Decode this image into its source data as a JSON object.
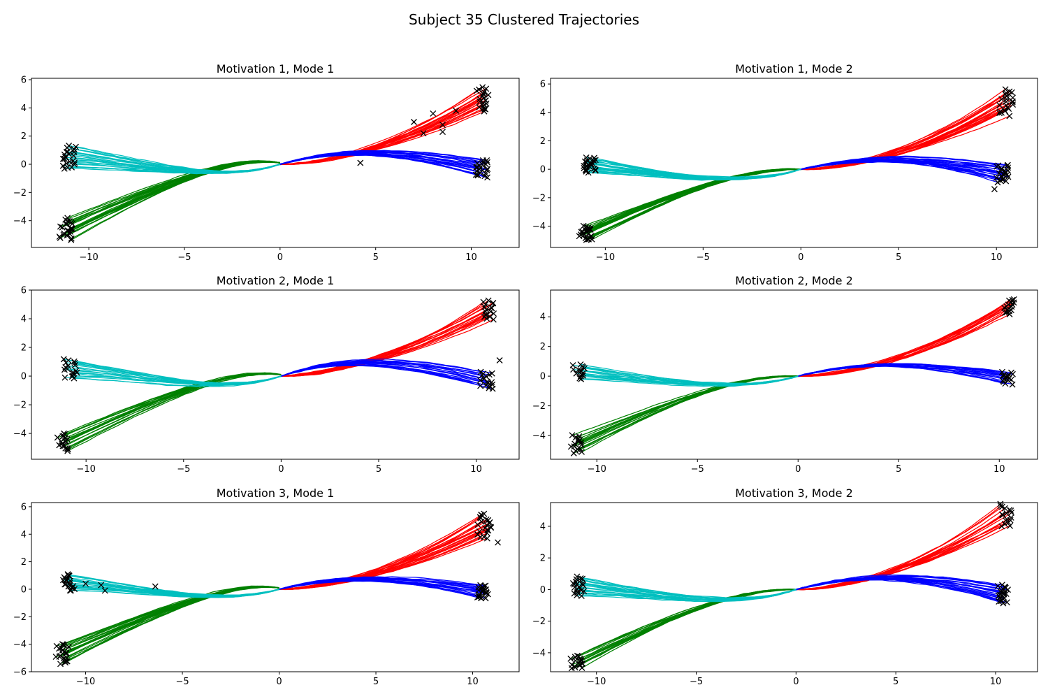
{
  "figure": {
    "title": "Subject 35 Clustered Trajectories"
  },
  "colors": {
    "red": "#ff0000",
    "blue": "#0000ff",
    "green": "#008000",
    "cyan": "#00bfbf",
    "marker": "#000000",
    "axes": "#000000"
  },
  "chart_data": [
    {
      "type": "line",
      "title": "Motivation 1, Mode 1",
      "xlim": [
        -13,
        12.5
      ],
      "ylim": [
        -5.9,
        6.1
      ],
      "xticks": [
        -10,
        -5,
        0,
        5,
        10
      ],
      "yticks": [
        -4,
        -2,
        0,
        2,
        4,
        6
      ],
      "clusters": [
        {
          "color": "red",
          "count": 22,
          "start": [
            0,
            0
          ],
          "end": [
            10.6,
            4.6
          ],
          "end_spread": [
            0.35,
            0.85
          ],
          "ctrl": [
            [
              3,
              0
            ],
            [
              7,
              1.8
            ]
          ],
          "spread": 0.35
        },
        {
          "color": "blue",
          "count": 22,
          "start": [
            0,
            0
          ],
          "end": [
            10.5,
            -0.3
          ],
          "end_spread": [
            0.35,
            0.6
          ],
          "ctrl": [
            [
              3,
              1.1
            ],
            [
              6,
              1.1
            ]
          ],
          "spread": 0.3
        },
        {
          "color": "green",
          "count": 24,
          "start": [
            0,
            0.1
          ],
          "end": [
            -11.2,
            -4.6
          ],
          "end_spread": [
            0.35,
            0.75
          ],
          "ctrl": [
            [
              -2.5,
              0.6
            ],
            [
              -6,
              -1.4
            ]
          ],
          "spread": 0.3
        },
        {
          "color": "cyan",
          "count": 24,
          "start": [
            0,
            0
          ],
          "end": [
            -11.0,
            0.5
          ],
          "end_spread": [
            0.35,
            0.8
          ],
          "ctrl": [
            [
              -3,
              -1.3
            ],
            [
              -7,
              0
            ]
          ],
          "spread": 0.25
        }
      ],
      "extra_markers": [
        [
          7,
          3
        ],
        [
          7.5,
          2.2
        ],
        [
          8,
          3.6
        ],
        [
          8.5,
          2.8
        ],
        [
          9.2,
          3.8
        ],
        [
          8.5,
          2.3
        ],
        [
          4.2,
          0.1
        ]
      ]
    },
    {
      "type": "line",
      "title": "Motivation 1, Mode 2",
      "xlim": [
        -12.8,
        12.1
      ],
      "ylim": [
        -5.5,
        6.4
      ],
      "xticks": [
        -10,
        -5,
        0,
        5,
        10
      ],
      "yticks": [
        -4,
        -2,
        0,
        2,
        4,
        6
      ],
      "clusters": [
        {
          "color": "red",
          "count": 24,
          "start": [
            0,
            0
          ],
          "end": [
            10.5,
            4.7
          ],
          "end_spread": [
            0.35,
            0.9
          ],
          "ctrl": [
            [
              3,
              0
            ],
            [
              7,
              1.8
            ]
          ],
          "spread": 0.35
        },
        {
          "color": "blue",
          "count": 24,
          "start": [
            0,
            0
          ],
          "end": [
            10.3,
            -0.3
          ],
          "end_spread": [
            0.3,
            0.6
          ],
          "ctrl": [
            [
              3,
              0.9
            ],
            [
              6,
              0.9
            ]
          ],
          "spread": 0.3
        },
        {
          "color": "green",
          "count": 24,
          "start": [
            0,
            0
          ],
          "end": [
            -11.0,
            -4.5
          ],
          "end_spread": [
            0.35,
            0.5
          ],
          "ctrl": [
            [
              -3,
              0.1
            ],
            [
              -6,
              -1.5
            ]
          ],
          "spread": 0.3
        },
        {
          "color": "cyan",
          "count": 24,
          "start": [
            0,
            0
          ],
          "end": [
            -10.8,
            0.3
          ],
          "end_spread": [
            0.3,
            0.5
          ],
          "ctrl": [
            [
              -3,
              -1.3
            ],
            [
              -7,
              -0.4
            ]
          ],
          "spread": 0.25
        }
      ],
      "extra_markers": [
        [
          9.9,
          -1.4
        ]
      ]
    },
    {
      "type": "line",
      "title": "Motivation 2, Mode 1",
      "xlim": [
        -12.8,
        12.2
      ],
      "ylim": [
        -5.8,
        6.0
      ],
      "xticks": [
        -10,
        -5,
        0,
        5,
        10
      ],
      "yticks": [
        -4,
        -2,
        0,
        2,
        4,
        6
      ],
      "clusters": [
        {
          "color": "red",
          "count": 18,
          "start": [
            0,
            0
          ],
          "end": [
            10.6,
            4.6
          ],
          "end_spread": [
            0.3,
            0.7
          ],
          "ctrl": [
            [
              3,
              0.1
            ],
            [
              7,
              1.8
            ]
          ],
          "spread": 0.35
        },
        {
          "color": "blue",
          "count": 18,
          "start": [
            0,
            0
          ],
          "end": [
            10.5,
            -0.3
          ],
          "end_spread": [
            0.35,
            0.6
          ],
          "ctrl": [
            [
              3,
              1.3
            ],
            [
              6,
              1.2
            ]
          ],
          "spread": 0.35
        },
        {
          "color": "green",
          "count": 18,
          "start": [
            0,
            0.1
          ],
          "end": [
            -11.2,
            -4.6
          ],
          "end_spread": [
            0.3,
            0.6
          ],
          "ctrl": [
            [
              -2.5,
              0.6
            ],
            [
              -6,
              -1.4
            ]
          ],
          "spread": 0.3
        },
        {
          "color": "cyan",
          "count": 18,
          "start": [
            0,
            0
          ],
          "end": [
            -10.8,
            0.5
          ],
          "end_spread": [
            0.35,
            0.7
          ],
          "ctrl": [
            [
              -3,
              -1.3
            ],
            [
              -7,
              0
            ]
          ],
          "spread": 0.25
        }
      ],
      "extra_markers": [
        [
          11.2,
          1.1
        ]
      ]
    },
    {
      "type": "line",
      "title": "Motivation 2, Mode 2",
      "xlim": [
        -12.3,
        11.9
      ],
      "ylim": [
        -5.6,
        5.8
      ],
      "xticks": [
        -10,
        -5,
        0,
        5,
        10
      ],
      "yticks": [
        -4,
        -2,
        0,
        2,
        4
      ],
      "clusters": [
        {
          "color": "red",
          "count": 16,
          "start": [
            0,
            0
          ],
          "end": [
            10.5,
            4.7
          ],
          "end_spread": [
            0.3,
            0.5
          ],
          "ctrl": [
            [
              3,
              0
            ],
            [
              7,
              1.8
            ]
          ],
          "spread": 0.35
        },
        {
          "color": "blue",
          "count": 16,
          "start": [
            0,
            0
          ],
          "end": [
            10.4,
            -0.1
          ],
          "end_spread": [
            0.3,
            0.4
          ],
          "ctrl": [
            [
              3,
              1.0
            ],
            [
              6,
              1.0
            ]
          ],
          "spread": 0.3
        },
        {
          "color": "green",
          "count": 16,
          "start": [
            0,
            0
          ],
          "end": [
            -11.0,
            -4.6
          ],
          "end_spread": [
            0.3,
            0.6
          ],
          "ctrl": [
            [
              -3,
              0.1
            ],
            [
              -6,
              -1.5
            ]
          ],
          "spread": 0.3
        },
        {
          "color": "cyan",
          "count": 16,
          "start": [
            0,
            0
          ],
          "end": [
            -10.9,
            0.3
          ],
          "end_spread": [
            0.3,
            0.5
          ],
          "ctrl": [
            [
              -3,
              -1.2
            ],
            [
              -7,
              -0.3
            ]
          ],
          "spread": 0.25
        }
      ],
      "extra_markers": []
    },
    {
      "type": "line",
      "title": "Motivation 3, Mode 1",
      "xlim": [
        -12.8,
        12.4
      ],
      "ylim": [
        -6.0,
        6.3
      ],
      "xticks": [
        -10,
        -5,
        0,
        5,
        10
      ],
      "yticks": [
        -6,
        -4,
        -2,
        0,
        2,
        4,
        6
      ],
      "clusters": [
        {
          "color": "red",
          "count": 24,
          "start": [
            0,
            0
          ],
          "end": [
            10.6,
            4.6
          ],
          "end_spread": [
            0.35,
            0.9
          ],
          "ctrl": [
            [
              3,
              0
            ],
            [
              7,
              1.8
            ]
          ],
          "spread": 0.4
        },
        {
          "color": "blue",
          "count": 22,
          "start": [
            0,
            0
          ],
          "end": [
            10.5,
            -0.2
          ],
          "end_spread": [
            0.3,
            0.5
          ],
          "ctrl": [
            [
              3,
              1.0
            ],
            [
              6,
              1.0
            ]
          ],
          "spread": 0.3
        },
        {
          "color": "green",
          "count": 24,
          "start": [
            0,
            0.1
          ],
          "end": [
            -11.2,
            -4.7
          ],
          "end_spread": [
            0.35,
            0.75
          ],
          "ctrl": [
            [
              -2.5,
              0.6
            ],
            [
              -6,
              -1.4
            ]
          ],
          "spread": 0.3
        },
        {
          "color": "cyan",
          "count": 22,
          "start": [
            0,
            0
          ],
          "end": [
            -10.9,
            0.5
          ],
          "end_spread": [
            0.35,
            0.6
          ],
          "ctrl": [
            [
              -3,
              -1.2
            ],
            [
              -7,
              0
            ]
          ],
          "spread": 0.25
        }
      ],
      "extra_markers": [
        [
          -10,
          0.4
        ],
        [
          -9.2,
          0.3
        ],
        [
          -9,
          -0.1
        ],
        [
          -6.4,
          0.2
        ],
        [
          11.3,
          3.4
        ]
      ]
    },
    {
      "type": "line",
      "title": "Motivation 3, Mode 2",
      "xlim": [
        -12.3,
        12.1
      ],
      "ylim": [
        -5.2,
        5.5
      ],
      "xticks": [
        -10,
        -5,
        0,
        5,
        10
      ],
      "yticks": [
        -4,
        -2,
        0,
        2,
        4
      ],
      "clusters": [
        {
          "color": "red",
          "count": 18,
          "start": [
            0,
            0
          ],
          "end": [
            10.5,
            4.7
          ],
          "end_spread": [
            0.3,
            0.7
          ],
          "ctrl": [
            [
              3,
              0
            ],
            [
              7,
              1.8
            ]
          ],
          "spread": 0.35
        },
        {
          "color": "blue",
          "count": 22,
          "start": [
            0,
            0
          ],
          "end": [
            10.4,
            -0.3
          ],
          "end_spread": [
            0.3,
            0.6
          ],
          "ctrl": [
            [
              3,
              1.0
            ],
            [
              6,
              1.0
            ]
          ],
          "spread": 0.3
        },
        {
          "color": "green",
          "count": 18,
          "start": [
            0,
            0
          ],
          "end": [
            -11.0,
            -4.6
          ],
          "end_spread": [
            0.3,
            0.4
          ],
          "ctrl": [
            [
              -3,
              0.1
            ],
            [
              -6,
              -1.5
            ]
          ],
          "spread": 0.3
        },
        {
          "color": "cyan",
          "count": 22,
          "start": [
            0,
            0
          ],
          "end": [
            -10.9,
            0.2
          ],
          "end_spread": [
            0.3,
            0.6
          ],
          "ctrl": [
            [
              -3,
              -1.3
            ],
            [
              -7,
              -0.3
            ]
          ],
          "spread": 0.25
        }
      ],
      "extra_markers": []
    }
  ]
}
